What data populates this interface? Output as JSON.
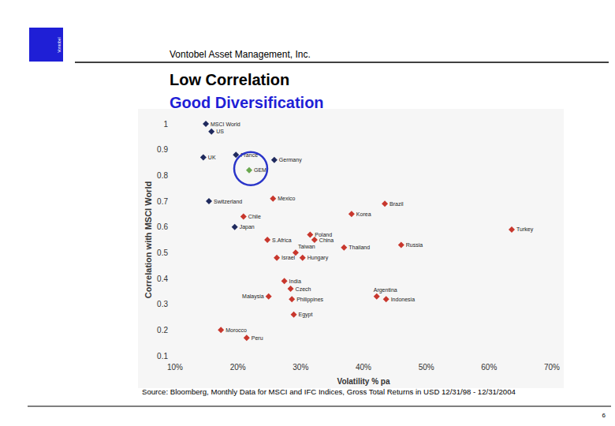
{
  "page": {
    "logo": "Vontobel",
    "company": "Vontobel Asset Management, Inc.",
    "source": "Source: Bloomberg, Monthly Data for MSCI and IFC Indices, Gross Total Returns in USD 12/31/98 - 12/31/2004",
    "page_number": 6
  },
  "chart_data": {
    "type": "scatter",
    "title": "Low Correlation",
    "subtitle": "Good Diversification",
    "x_label": "Volatility % pa",
    "y_label": "Correlation with MSCI World",
    "labels": [
      "MSCI World",
      "US",
      "UK",
      "France",
      "Germany",
      "GEM",
      "Mexico",
      "Switzerland",
      "Brazil",
      "Korea",
      "Chile",
      "Japan",
      "Turkey",
      "Poland",
      "China",
      "S.Africa",
      "Russia",
      "Thailand",
      "Taiwan",
      "Israel",
      "Hungary",
      "India",
      "Czech",
      "Malaysia",
      "Philippines",
      "Argentina",
      "Indonesia",
      "Egypt",
      "Morocco",
      "Peru"
    ],
    "x": [
      14.9,
      15.8,
      14.5,
      19.7,
      25.8,
      21.8,
      25.6,
      15.4,
      43.4,
      38.1,
      20.9,
      19.5,
      63.6,
      31.5,
      32.2,
      24.7,
      46.0,
      36.9,
      29.2,
      26.2,
      30.3,
      27.4,
      28.4,
      24.9,
      28.6,
      42.1,
      43.6,
      28.9,
      17.3,
      21.4
    ],
    "values": [
      1.0,
      0.97,
      0.87,
      0.88,
      0.86,
      0.82,
      0.71,
      0.7,
      0.69,
      0.65,
      0.64,
      0.6,
      0.59,
      0.57,
      0.55,
      0.55,
      0.53,
      0.52,
      0.5,
      0.48,
      0.48,
      0.39,
      0.36,
      0.33,
      0.32,
      0.33,
      0.32,
      0.26,
      0.2,
      0.17
    ],
    "colors": [
      "#1f2a5e",
      "#1f2a5e",
      "#1f2a5e",
      "#1f2a5e",
      "#1f2a5e",
      "#6aa84f",
      "#c8372d",
      "#1f2a5e",
      "#c8372d",
      "#c8372d",
      "#c8372d",
      "#1f2a5e",
      "#c8372d",
      "#c8372d",
      "#c8372d",
      "#c8372d",
      "#c8372d",
      "#c8372d",
      "#c8372d",
      "#c8372d",
      "#c8372d",
      "#c8372d",
      "#c8372d",
      "#c8372d",
      "#c8372d",
      "#c8372d",
      "#c8372d",
      "#c8372d",
      "#c8372d",
      "#c8372d"
    ],
    "marker": "diamond",
    "xlim": [
      10,
      70
    ],
    "xticks": [
      {
        "value": 10,
        "label": "10%"
      },
      {
        "value": 20,
        "label": "20%"
      },
      {
        "value": 30,
        "label": "30%"
      },
      {
        "value": 40,
        "label": "40%"
      },
      {
        "value": 50,
        "label": "50%"
      },
      {
        "value": 60,
        "label": "60%"
      },
      {
        "value": 70,
        "label": "70%"
      }
    ],
    "ylim": [
      0.1,
      1
    ],
    "yticks": [
      0.1,
      0.2,
      0.3,
      0.4,
      0.5,
      0.6,
      0.7,
      0.8,
      0.9,
      1
    ],
    "grid": false
  }
}
